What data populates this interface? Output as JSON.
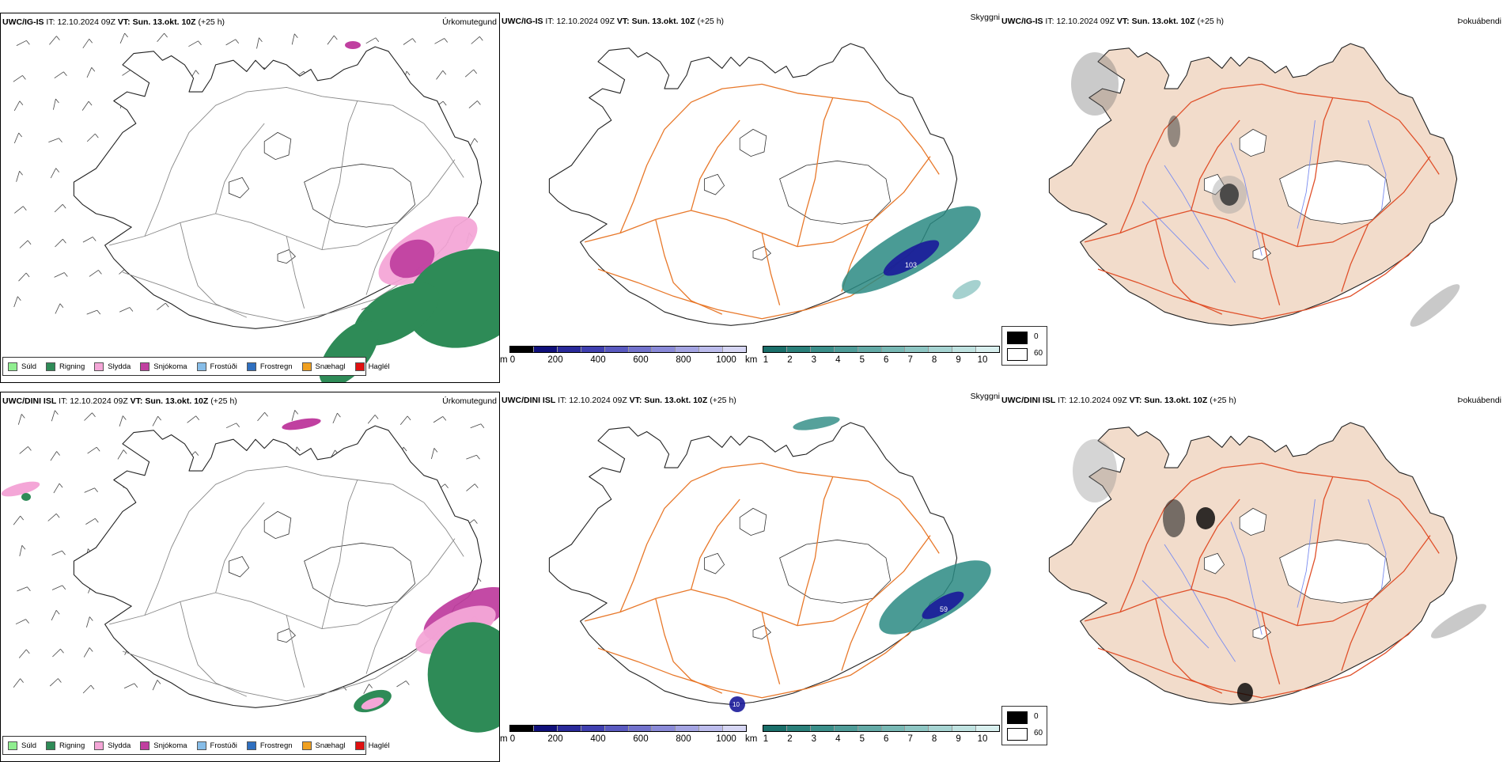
{
  "rows": [
    {
      "model": "UWC/IG-IS",
      "it_label": "IT:",
      "it_value": "12.10.2024 09Z",
      "vt_label": "VT:",
      "vt_value": "Sun. 13.okt. 10Z",
      "lead": "(+25 h)"
    },
    {
      "model": "UWC/DINI ISL",
      "it_label": "IT:",
      "it_value": "12.10.2024 09Z",
      "vt_label": "VT:",
      "vt_value": "Sun. 13.okt. 10Z",
      "lead": "(+25 h)"
    }
  ],
  "panel_titles": {
    "precip": "Úrkomutegund",
    "cloud": "Skyggni",
    "fog": "Þokuábendi"
  },
  "precip_legend": [
    {
      "label": "Súld",
      "color": "#90ee90"
    },
    {
      "label": "Rigning",
      "color": "#2e8b57"
    },
    {
      "label": "Slydda",
      "color": "#f4a6d7"
    },
    {
      "label": "Snjókoma",
      "color": "#c040a0"
    },
    {
      "label": "Frostúði",
      "color": "#87bde8"
    },
    {
      "label": "Frostregn",
      "color": "#2f6fbf"
    },
    {
      "label": "Snæhagl",
      "color": "#f0a020"
    },
    {
      "label": "Haglél",
      "color": "#e01010"
    }
  ],
  "cloudbase_scale": {
    "unit": "m",
    "ticks": [
      "0",
      "200",
      "400",
      "600",
      "800",
      "1000"
    ],
    "colors": [
      "#000000",
      "#10107a",
      "#2a2a9a",
      "#4040b0",
      "#5a5ac0",
      "#7272cc",
      "#8a8ad8",
      "#a4a4e2",
      "#bcbcec",
      "#d6d6f4"
    ]
  },
  "visibility_scale": {
    "unit": "km",
    "ticks": [
      "1",
      "2",
      "3",
      "4",
      "5",
      "6",
      "7",
      "8",
      "9",
      "10"
    ],
    "colors": [
      "#1a6f6a",
      "#2a807a",
      "#3b8f8a",
      "#4f9c98",
      "#63aaa6",
      "#78b8b4",
      "#8ec6c3",
      "#a6d4d2",
      "#bfe2e0",
      "#d8efee"
    ]
  },
  "fog_scale": [
    {
      "label": "0",
      "color": "#000000"
    },
    {
      "label": "60",
      "color": "#ffffff"
    }
  ],
  "annotations": {
    "row1_cloud_value": "103",
    "row2_cloud_value": "59",
    "row2_cloud_value_south": "10"
  },
  "colors": {
    "roads": "#e8782a",
    "roads_fog": "#e0502a",
    "coast": "#222222",
    "land_fog": "#f2dccb",
    "rivers": "#7a8cf0",
    "rain": "#2e8b57",
    "snow": "#c040a0",
    "sleet": "#f4a6d7",
    "teal": "#2a8a82",
    "navy": "#1a1a9a"
  }
}
